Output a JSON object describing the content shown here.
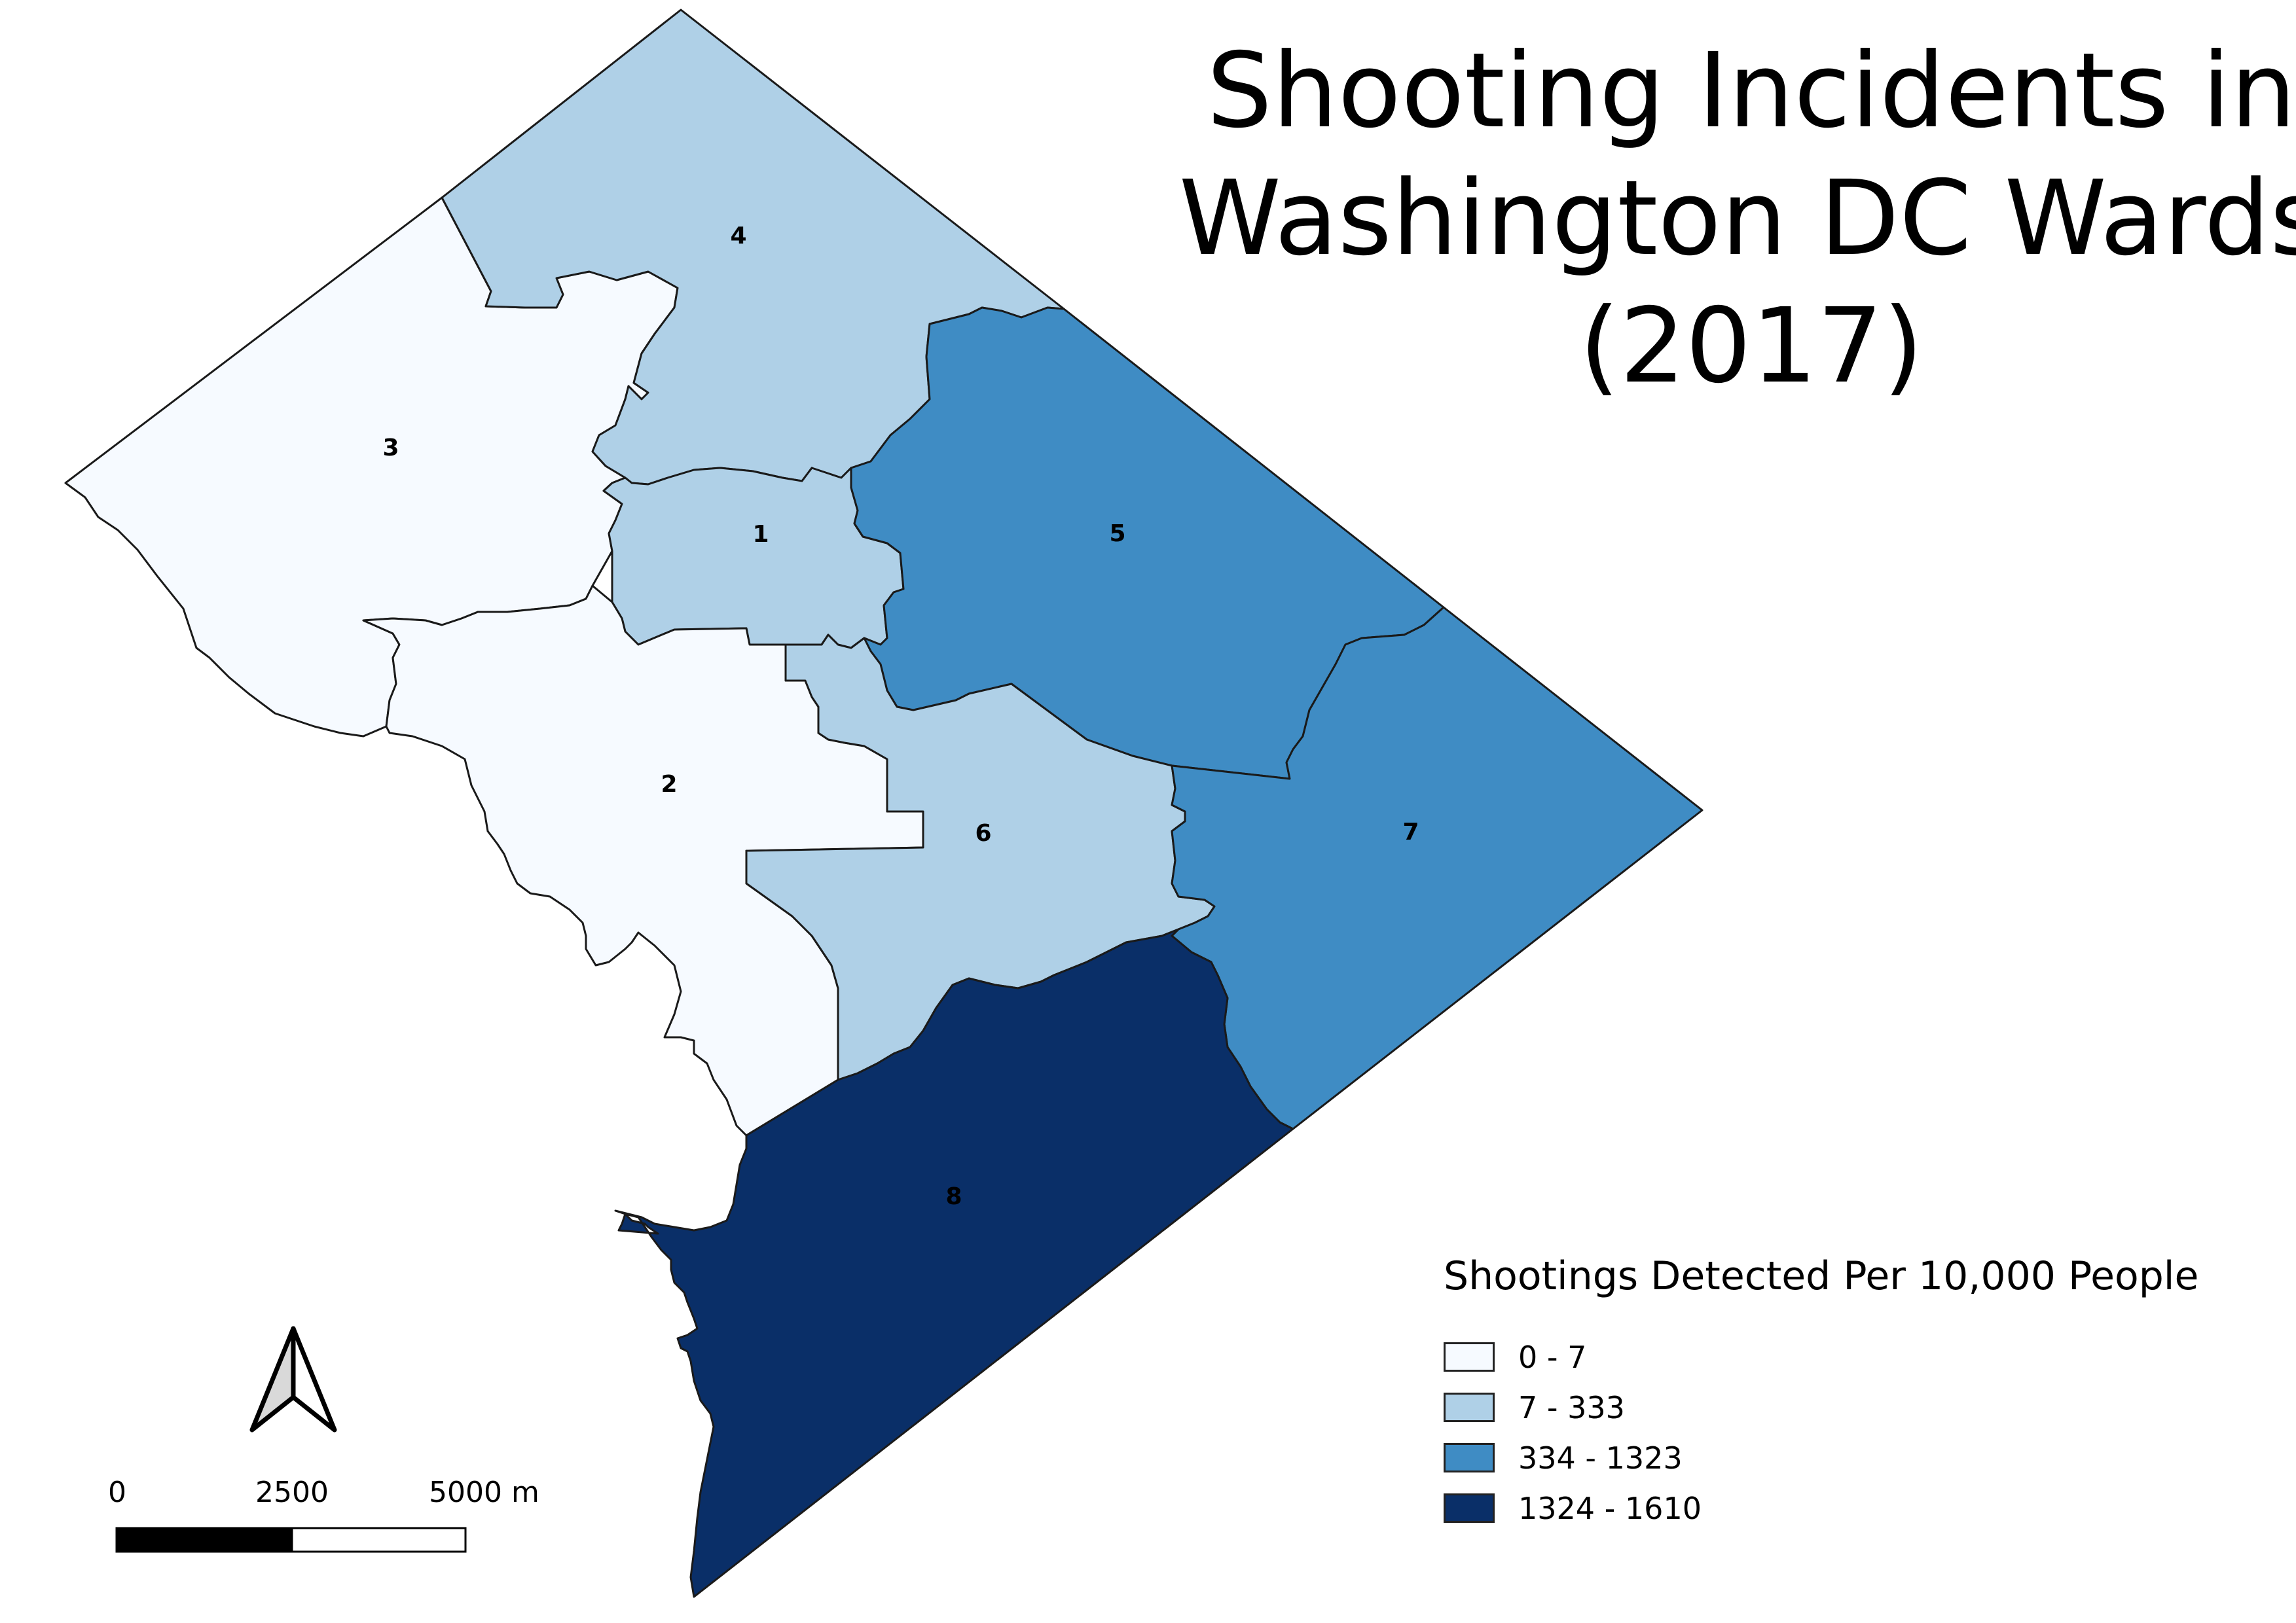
{
  "title": {
    "line1": "Shooting Incidents in",
    "line2": "Washington DC Wards",
    "line3": "(2017)"
  },
  "wards": [
    {
      "label": "1",
      "color": "#afd0e7"
    },
    {
      "label": "2",
      "color": "#f6faff"
    },
    {
      "label": "3",
      "color": "#f6faff"
    },
    {
      "label": "4",
      "color": "#afd0e7"
    },
    {
      "label": "5",
      "color": "#3f8cc4"
    },
    {
      "label": "6",
      "color": "#afd0e7"
    },
    {
      "label": "7",
      "color": "#3f8cc4"
    },
    {
      "label": "8",
      "color": "#0a2f68"
    }
  ],
  "legend": {
    "title": "Shootings Detected Per 10,000 People",
    "items": [
      {
        "label": "0 - 7",
        "color": "#f6faff"
      },
      {
        "label": "7 - 333",
        "color": "#afd0e7"
      },
      {
        "label": "334 - 1323",
        "color": "#3f8cc4"
      },
      {
        "label": "1324 - 1610",
        "color": "#0a2f68"
      }
    ]
  },
  "scale_bar": {
    "labels": [
      "0",
      "2500",
      "5000 m"
    ]
  },
  "north_arrow_icon": "north-arrow-icon"
}
